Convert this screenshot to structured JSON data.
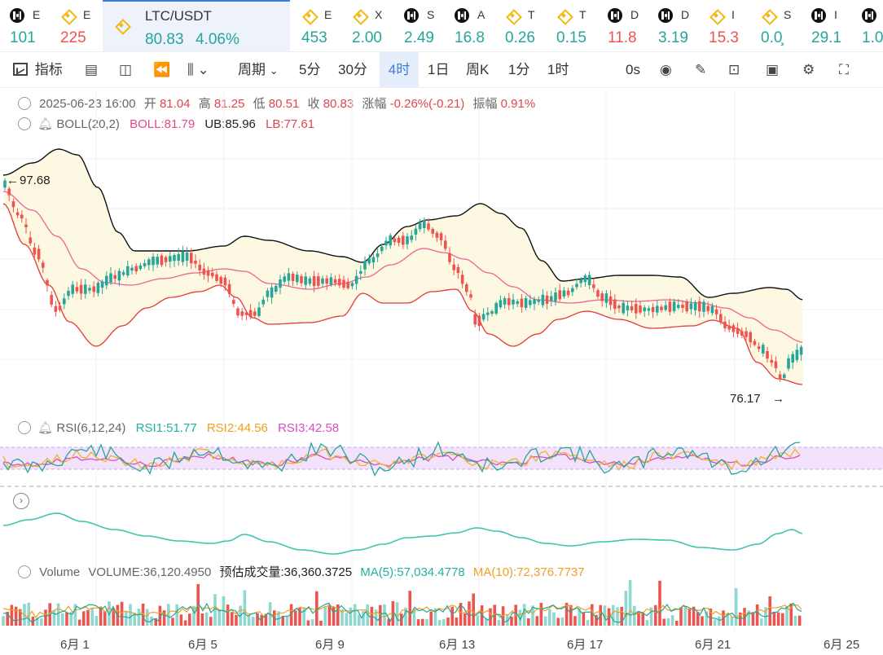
{
  "tickers": [
    {
      "sym": "E",
      "val": "101",
      "trend": "up",
      "icon": "okx-icon"
    },
    {
      "sym": "E",
      "val": "225",
      "trend": "down",
      "icon": "binance-icon"
    },
    {
      "sym": "LTC/USDT",
      "val": "80.83",
      "change": "4.06%",
      "trend": "up",
      "icon": "binance-icon",
      "active": true
    },
    {
      "sym": "E",
      "val": "453",
      "trend": "up",
      "icon": "binance-icon"
    },
    {
      "sym": "X",
      "val": "2.00",
      "trend": "up",
      "icon": "binance-icon"
    },
    {
      "sym": "S",
      "val": "2.49",
      "trend": "up",
      "icon": "okx-icon"
    },
    {
      "sym": "A",
      "val": "16.8",
      "trend": "up",
      "icon": "okx-icon"
    },
    {
      "sym": "T",
      "val": "0.26",
      "trend": "up",
      "icon": "binance-icon"
    },
    {
      "sym": "T",
      "val": "0.15",
      "trend": "up",
      "icon": "binance-icon"
    },
    {
      "sym": "D",
      "val": "11.8",
      "trend": "down",
      "icon": "okx-icon"
    },
    {
      "sym": "D",
      "val": "3.19",
      "trend": "up",
      "icon": "okx-icon"
    },
    {
      "sym": "I",
      "val": "15.3",
      "trend": "down",
      "icon": "binance-icon"
    },
    {
      "sym": "S",
      "val": "0.0̧",
      "trend": "up",
      "icon": "binance-icon"
    },
    {
      "sym": "I",
      "val": "29.1",
      "trend": "up",
      "icon": "okx-icon"
    },
    {
      "sym": "",
      "val": "1.0",
      "trend": "up",
      "icon": "okx-icon"
    }
  ],
  "toolbar": {
    "indicators": "指标",
    "period": "周期",
    "intervals": [
      "5分",
      "30分",
      "4时",
      "1日",
      "周K",
      "1分",
      "1时"
    ],
    "active_interval": "4时",
    "countdown": "0s"
  },
  "ohlc": {
    "date": "2025-06-23 16:00",
    "open_label": "开",
    "open": "81.04",
    "high_label": "高",
    "high": "81.25",
    "low_label": "低",
    "low": "80.51",
    "close_label": "收",
    "close": "80.83",
    "change_label": "涨幅",
    "change": "-0.26%(-0.21)",
    "amp_label": "振幅",
    "amp": "0.91%"
  },
  "boll": {
    "name": "BOLL(20,2)",
    "mid": "BOLL:81.79",
    "ub": "UB:85.96",
    "lb": "LB:77.61"
  },
  "rsi": {
    "name": "RSI(6,12,24)",
    "rsi1": "RSI1:51.77",
    "rsi2": "RSI2:44.56",
    "rsi3": "RSI3:42.58"
  },
  "volume": {
    "name": "Volume",
    "vol": "VOLUME:36,120.4950",
    "est": "预估成交量:36,360.3725",
    "ma5": "MA(5):57,034.4778",
    "ma10": "MA(10):72,376.7737"
  },
  "price_marks": {
    "high": "97.68",
    "low": "76.17"
  },
  "x_labels": [
    "6月 1",
    "6月 5",
    "6月 9",
    "6月 13",
    "6月 17",
    "6月 21",
    "6月 25"
  ],
  "colors": {
    "up": "#26a69a",
    "down": "#ef5350",
    "boll_upper": "#111111",
    "boll_mid": "#f06292",
    "boll_lower": "#e53935",
    "band_fill": "#fdf8e1",
    "rsi1": "#26a69a",
    "rsi2": "#f0b429",
    "rsi3": "#d94dc4",
    "accent": "#3b7ddd"
  },
  "chart_data": {
    "type": "line",
    "title": "LTC/USDT",
    "x": [
      "6月 1",
      "6月 5",
      "6月 9",
      "6月 13",
      "6月 17",
      "6月 21",
      "6月 25"
    ],
    "series": [
      {
        "name": "BOLL",
        "last": 81.79
      },
      {
        "name": "UB",
        "last": 85.96
      },
      {
        "name": "LB",
        "last": 77.61
      }
    ],
    "high": 97.68,
    "low": 76.17,
    "ylim": [
      74,
      100
    ]
  }
}
